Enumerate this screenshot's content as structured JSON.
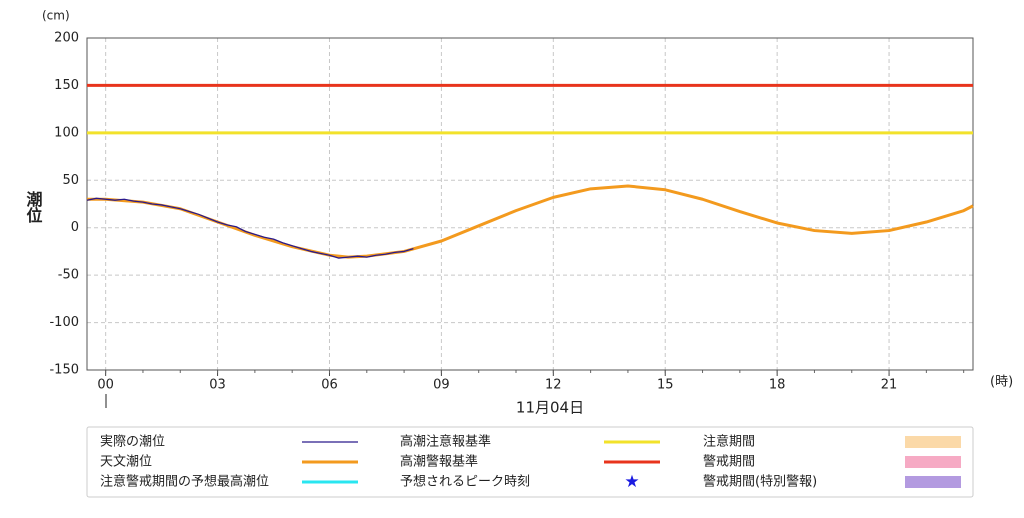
{
  "chart_data": {
    "type": "line",
    "y_unit": "(cm)",
    "x_unit": "(時)",
    "ylabel": "潮位",
    "date_label": "11月04日",
    "xlim": [
      -0.5,
      23.25
    ],
    "ylim": [
      -150,
      200
    ],
    "yticks": [
      -150,
      -100,
      -50,
      0,
      50,
      100,
      150,
      200
    ],
    "xticks": [
      {
        "value": 0,
        "label": "00"
      },
      {
        "value": 3,
        "label": "03"
      },
      {
        "value": 6,
        "label": "06"
      },
      {
        "value": 9,
        "label": "09"
      },
      {
        "value": 12,
        "label": "12"
      },
      {
        "value": 15,
        "label": "15"
      },
      {
        "value": 18,
        "label": "18"
      },
      {
        "value": 21,
        "label": "21"
      }
    ],
    "grid": true,
    "thresholds": [
      {
        "name": "高潮注意報基準",
        "color": "#f2e22a",
        "value": 100
      },
      {
        "name": "高潮警報基準",
        "color": "#e8341c",
        "value": 150
      }
    ],
    "series": [
      {
        "name": "実際の潮位",
        "color": "#2a1a8c",
        "x": [
          -0.5,
          -0.25,
          0,
          0.25,
          0.5,
          0.75,
          1,
          1.25,
          1.5,
          1.75,
          2,
          2.25,
          2.5,
          2.75,
          3,
          3.25,
          3.5,
          3.75,
          4,
          4.25,
          4.5,
          4.75,
          5,
          5.25,
          5.5,
          5.75,
          6,
          6.25,
          6.5,
          6.75,
          7,
          7.25,
          7.5,
          7.75,
          8,
          8.25
        ],
        "values": [
          29,
          31,
          30,
          29,
          30,
          28,
          27,
          25,
          24,
          22,
          20,
          17,
          14,
          10,
          6,
          3,
          1,
          -4,
          -7,
          -10,
          -12,
          -16,
          -19,
          -22,
          -25,
          -27,
          -29,
          -32,
          -31,
          -30,
          -31,
          -29,
          -28,
          -26,
          -25,
          -22
        ]
      },
      {
        "name": "天文潮位",
        "color": "#f39a1e",
        "x": [
          -0.5,
          0,
          1,
          2,
          3,
          4,
          5,
          6,
          6.5,
          7,
          8,
          9,
          10,
          11,
          12,
          13,
          14,
          15,
          16,
          17,
          18,
          19,
          20,
          21,
          22,
          23,
          23.25
        ],
        "values": [
          30,
          30,
          27,
          20,
          6,
          -8,
          -20,
          -29,
          -31,
          -30,
          -25,
          -14,
          2,
          18,
          32,
          41,
          44,
          40,
          30,
          17,
          5,
          -3,
          -6,
          -3,
          6,
          18,
          23
        ]
      }
    ],
    "other_legend": [
      {
        "name": "注意警戒期間の予想最高潮位",
        "color": "#29e6f0",
        "style": "line"
      },
      {
        "name": "予想されるピーク時刻",
        "color": "#1a1ae0",
        "style": "star"
      },
      {
        "name": "注意期間",
        "color": "#fbd9a8",
        "style": "swatch"
      },
      {
        "name": "警戒期間",
        "color": "#f6aac4",
        "style": "swatch"
      },
      {
        "name": "警戒期間(特別警報)",
        "color": "#b39ae0",
        "style": "swatch"
      }
    ]
  }
}
